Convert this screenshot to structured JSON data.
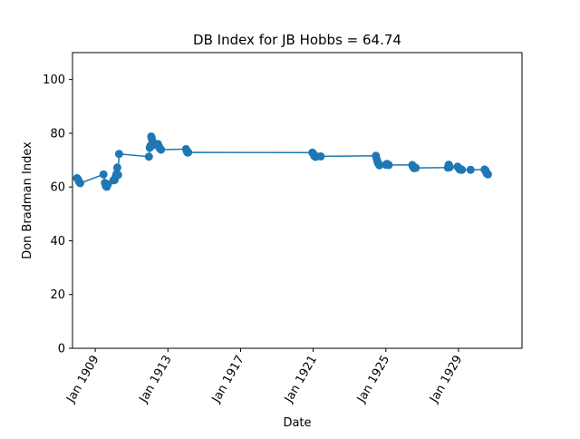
{
  "chart_data": {
    "type": "line",
    "title": "DB Index for JB Hobbs = 64.74",
    "xlabel": "Date",
    "ylabel": "Don Bradman Index",
    "x_type": "date",
    "xlim": [
      "1907-10-01",
      "1932-07-01"
    ],
    "ylim": [
      0,
      110
    ],
    "x_ticks": [
      "1909-01-01",
      "1913-01-01",
      "1917-01-01",
      "1921-01-01",
      "1925-01-01",
      "1929-01-01"
    ],
    "x_tick_labels": [
      "Jan 1909",
      "Jan 1913",
      "Jan 1917",
      "Jan 1921",
      "Jan 1925",
      "Jan 1929"
    ],
    "y_ticks": [
      0,
      20,
      40,
      60,
      80,
      100
    ],
    "y_tick_labels": [
      "0",
      "20",
      "40",
      "60",
      "80",
      "100"
    ],
    "grid": false,
    "legend": "none",
    "color": "#1f77b4",
    "series": [
      {
        "x": [
          "1908-01-01",
          "1908-01-22",
          "1908-02-12",
          "1908-03-04",
          "1909-06-15",
          "1909-07-15",
          "1909-08-01",
          "1909-08-20",
          "1909-09-10",
          "1910-01-01",
          "1910-01-25",
          "1910-02-15",
          "1910-03-05",
          "1910-03-20",
          "1910-04-05",
          "1910-04-25",
          "1911-12-15",
          "1912-01-01",
          "1912-01-15",
          "1912-02-01",
          "1912-02-10",
          "1912-02-20",
          "1912-03-01",
          "1912-06-15",
          "1912-07-01",
          "1912-07-15",
          "1912-08-01",
          "1912-08-15",
          "1914-01-01",
          "1914-01-15",
          "1914-02-01",
          "1914-02-15",
          "1920-12-15",
          "1921-01-05",
          "1921-01-25",
          "1921-02-15",
          "1921-03-05",
          "1921-06-01",
          "1924-06-15",
          "1924-07-01",
          "1924-07-20",
          "1924-08-05",
          "1924-08-25",
          "1925-01-01",
          "1925-01-20",
          "1925-02-10",
          "1925-03-01",
          "1926-06-15",
          "1926-07-01",
          "1926-07-20",
          "1926-08-10",
          "1926-08-25",
          "1928-06-01",
          "1928-06-20",
          "1928-07-10",
          "1928-12-15",
          "1929-01-10",
          "1929-02-01",
          "1929-02-20",
          "1929-03-10",
          "1929-09-01",
          "1930-06-10",
          "1930-06-25",
          "1930-07-10",
          "1930-07-25",
          "1930-08-15"
        ],
        "y": [
          63.3,
          62.8,
          61.9,
          61.4,
          64.7,
          61.5,
          60.4,
          60.1,
          61.0,
          62.5,
          62.6,
          63.8,
          64.9,
          67.2,
          64.5,
          72.3,
          71.3,
          74.6,
          75.3,
          78.8,
          78.1,
          77.3,
          75.5,
          76.0,
          75.2,
          74.5,
          74.2,
          73.9,
          74.1,
          73.3,
          72.8,
          72.9,
          72.8,
          72.3,
          71.5,
          71.2,
          71.4,
          71.4,
          71.6,
          70.4,
          69.3,
          68.6,
          68.1,
          68.3,
          68.6,
          68.4,
          68.2,
          68.2,
          67.5,
          67.0,
          67.3,
          67.1,
          67.2,
          68.3,
          67.4,
          67.6,
          66.8,
          66.5,
          66.6,
          66.4,
          66.4,
          66.5,
          66.2,
          65.7,
          65.0,
          64.7
        ]
      }
    ]
  }
}
